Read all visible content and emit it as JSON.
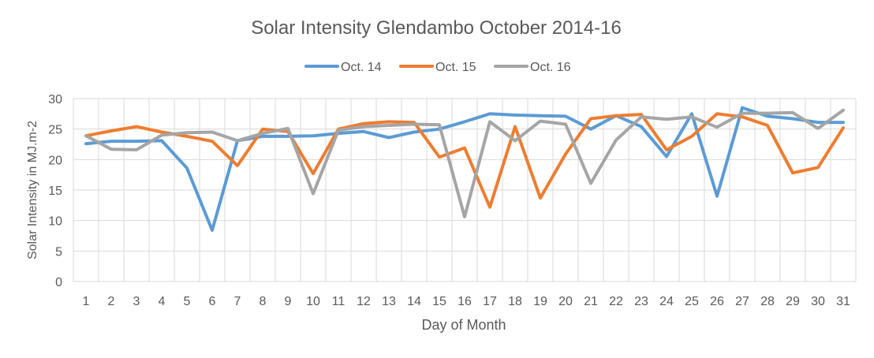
{
  "chart_data": {
    "type": "line",
    "title": "Solar Intensity Glendambo October 2014-16",
    "xlabel": "Day of Month",
    "ylabel": "Solar Intensity in MJ.m-2",
    "ylim": [
      0,
      30
    ],
    "yticks": [
      0,
      5,
      10,
      15,
      20,
      25,
      30
    ],
    "grid": true,
    "legend_position": "top",
    "categories": [
      "1",
      "2",
      "3",
      "4",
      "5",
      "6",
      "7",
      "8",
      "9",
      "10",
      "11",
      "12",
      "13",
      "14",
      "15",
      "16",
      "17",
      "18",
      "19",
      "20",
      "21",
      "22",
      "23",
      "24",
      "25",
      "26",
      "27",
      "28",
      "29",
      "30",
      "31"
    ],
    "series": [
      {
        "name": "Oct. 14",
        "color": "#5b9bd5",
        "values": [
          22.6,
          23.0,
          23.0,
          23.1,
          18.6,
          8.4,
          23.1,
          23.8,
          23.8,
          23.9,
          24.3,
          24.6,
          23.6,
          24.5,
          25.0,
          26.2,
          27.5,
          27.3,
          27.2,
          27.1,
          25.0,
          27.2,
          25.4,
          20.5,
          27.5,
          14.0,
          28.5,
          27.1,
          26.7,
          26.1,
          26.1
        ]
      },
      {
        "name": "Oct. 15",
        "color": "#ed7d31",
        "values": [
          23.9,
          24.7,
          25.4,
          24.5,
          23.8,
          23.0,
          19.0,
          25.0,
          24.6,
          17.7,
          25.0,
          25.9,
          26.2,
          26.1,
          20.4,
          21.9,
          12.2,
          25.4,
          13.7,
          20.9,
          26.7,
          27.2,
          27.4,
          21.6,
          23.8,
          27.5,
          27.0,
          25.6,
          17.8,
          18.7,
          25.2
        ]
      },
      {
        "name": "Oct. 16",
        "color": "#a5a5a5",
        "values": [
          23.9,
          21.7,
          21.6,
          24.0,
          24.4,
          24.5,
          23.1,
          24.3,
          25.1,
          14.4,
          24.8,
          25.4,
          25.6,
          25.8,
          25.7,
          10.6,
          26.2,
          23.1,
          26.3,
          25.8,
          16.1,
          23.2,
          27.0,
          26.6,
          27.0,
          25.3,
          27.6,
          27.6,
          27.7,
          25.1,
          28.1
        ]
      }
    ]
  }
}
